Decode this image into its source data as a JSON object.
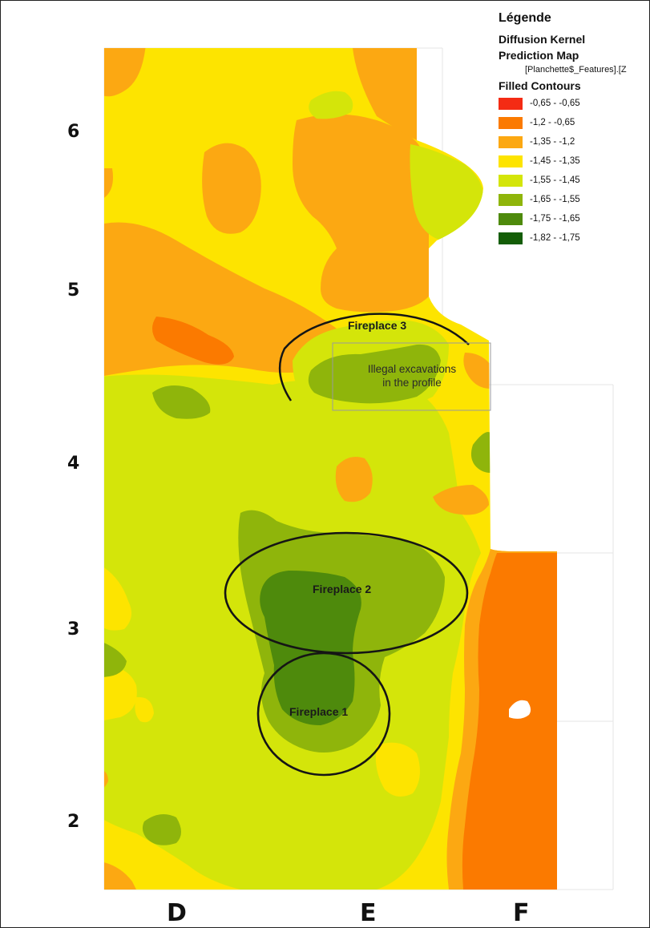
{
  "legend": {
    "title": "Légende",
    "layer": "Diffusion Kernel",
    "map_type": "Prediction Map",
    "source": "[Planchette$_Features].[Z",
    "contours_title": "Filled Contours",
    "classes": [
      {
        "label": "-0,65 - -0,65",
        "color": "#f42b14"
      },
      {
        "label": "-1,2 - -0,65",
        "color": "#fb7a00"
      },
      {
        "label": "-1,35 - -1,2",
        "color": "#fca812"
      },
      {
        "label": "-1,45 - -1,35",
        "color": "#fde400"
      },
      {
        "label": "-1,55 - -1,45",
        "color": "#d4e50a"
      },
      {
        "label": "-1,65 - -1,55",
        "color": "#8fb50b"
      },
      {
        "label": "-1,75 - -1,65",
        "color": "#4e8a0c"
      },
      {
        "label": "-1,82 - -1,75",
        "color": "#145d07"
      }
    ]
  },
  "axes": {
    "rows": [
      "6",
      "5",
      "4",
      "3",
      "2"
    ],
    "columns": [
      "D",
      "E",
      "F"
    ]
  },
  "annotations": {
    "fireplace_3": "Fireplace 3",
    "fireplace_2": "Fireplace 2",
    "fireplace_1": "Fireplace 1",
    "illegal_line1": "Illegal excavations",
    "illegal_line2": "in the profile"
  }
}
